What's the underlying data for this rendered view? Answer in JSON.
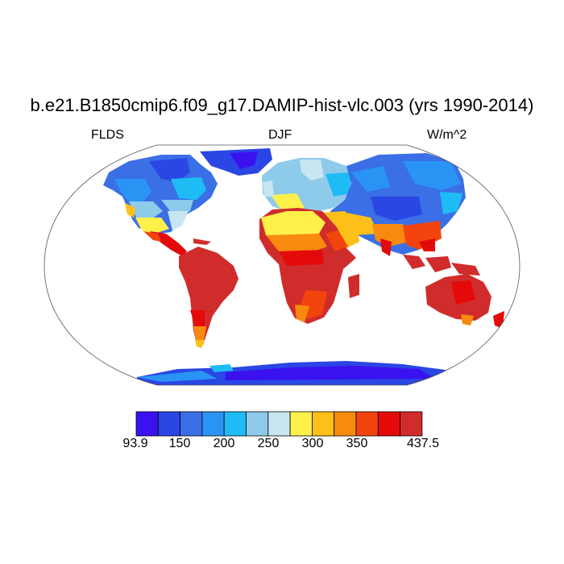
{
  "title": "b.e21.B1850cmip6.f09_g17.DAMIP-hist-vlc.003 (yrs 1990-2014)",
  "left_label": "FLDS",
  "center_label": "DJF",
  "right_label": "W/m^2",
  "colorbar": {
    "colors": [
      "#3a12f0",
      "#2a46e4",
      "#3a6fe6",
      "#2a94f4",
      "#1ebcf4",
      "#8ecaea",
      "#c8e6f2",
      "#fff04a",
      "#fcc018",
      "#f88a10",
      "#f4440e",
      "#e40a0a",
      "#d02c2c"
    ],
    "tick_labels": [
      "93.9",
      "150",
      "200",
      "250",
      "300",
      "350",
      "437.5"
    ]
  },
  "projection": "Robinson"
}
